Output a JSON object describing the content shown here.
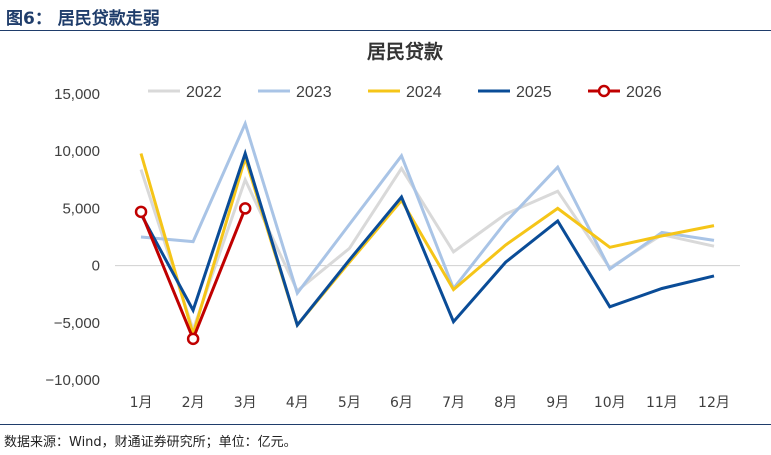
{
  "figure": {
    "label": "图6：  居民贷款走弱",
    "source": "数据来源：Wind，财通证券研究所；单位：亿元。"
  },
  "chart_data": {
    "type": "line",
    "title": "居民贷款",
    "xlabel": "",
    "ylabel": "",
    "categories": [
      "1月",
      "2月",
      "3月",
      "4月",
      "5月",
      "6月",
      "7月",
      "8月",
      "9月",
      "10月",
      "11月",
      "12月"
    ],
    "ylim": [
      -10000,
      15000
    ],
    "yticks": [
      15000,
      10000,
      5000,
      0,
      -5000,
      -10000
    ],
    "ytick_labels": [
      "15,000",
      "10,000",
      "5,000",
      "0",
      "−5,000",
      "−10,000"
    ],
    "legend_position": "top",
    "grid": false,
    "series": [
      {
        "name": "2022",
        "color": "#d9d9d9",
        "marker": false,
        "values": [
          8400,
          -5600,
          7500,
          -2200,
          1500,
          8500,
          1200,
          4500,
          6500,
          -200,
          2700,
          1700
        ]
      },
      {
        "name": "2023",
        "color": "#a9c4e6",
        "marker": false,
        "values": [
          2500,
          2100,
          12400,
          -2400,
          3600,
          9600,
          -2000,
          3800,
          8600,
          -300,
          2900,
          2200
        ]
      },
      {
        "name": "2024",
        "color": "#f5c518",
        "marker": false,
        "values": [
          9800,
          -6000,
          9400,
          -5200,
          300,
          5700,
          -2100,
          1800,
          5000,
          1600,
          2600,
          3500
        ]
      },
      {
        "name": "2025",
        "color": "#0a4c97",
        "marker": false,
        "values": [
          4500,
          -3900,
          9800,
          -5200,
          500,
          6000,
          -4900,
          300,
          3900,
          -3600,
          -2000,
          -900
        ]
      },
      {
        "name": "2026",
        "color": "#c00000",
        "marker": true,
        "values": [
          4700,
          -6400,
          5000,
          null,
          null,
          null,
          null,
          null,
          null,
          null,
          null,
          null
        ]
      }
    ]
  }
}
